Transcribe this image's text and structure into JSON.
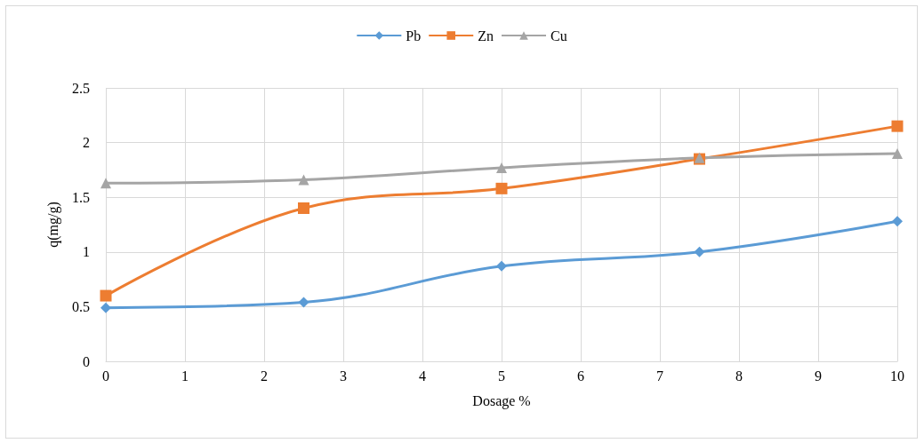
{
  "chart_data": {
    "type": "line",
    "xlabel": "Dosage %",
    "ylabel": "q(mg/g)",
    "x": [
      0,
      2.5,
      5,
      7.5,
      10
    ],
    "series": [
      {
        "name": "Pb",
        "color": "#5b9bd5",
        "marker": "diamond",
        "values": [
          0.49,
          0.54,
          0.87,
          1.0,
          1.28
        ]
      },
      {
        "name": "Zn",
        "color": "#ed7d31",
        "marker": "square",
        "values": [
          0.6,
          1.4,
          1.58,
          1.85,
          2.15
        ]
      },
      {
        "name": "Cu",
        "color": "#a5a5a5",
        "marker": "triangle",
        "values": [
          1.63,
          1.66,
          1.77,
          1.86,
          1.9
        ]
      }
    ],
    "xlim": [
      0,
      10
    ],
    "xticks": [
      0,
      1,
      2,
      3,
      4,
      5,
      6,
      7,
      8,
      9,
      10
    ],
    "ylim": [
      0,
      2.5
    ],
    "yticks": [
      0,
      0.5,
      1,
      1.5,
      2,
      2.5
    ],
    "grid": true,
    "legend": "top"
  }
}
